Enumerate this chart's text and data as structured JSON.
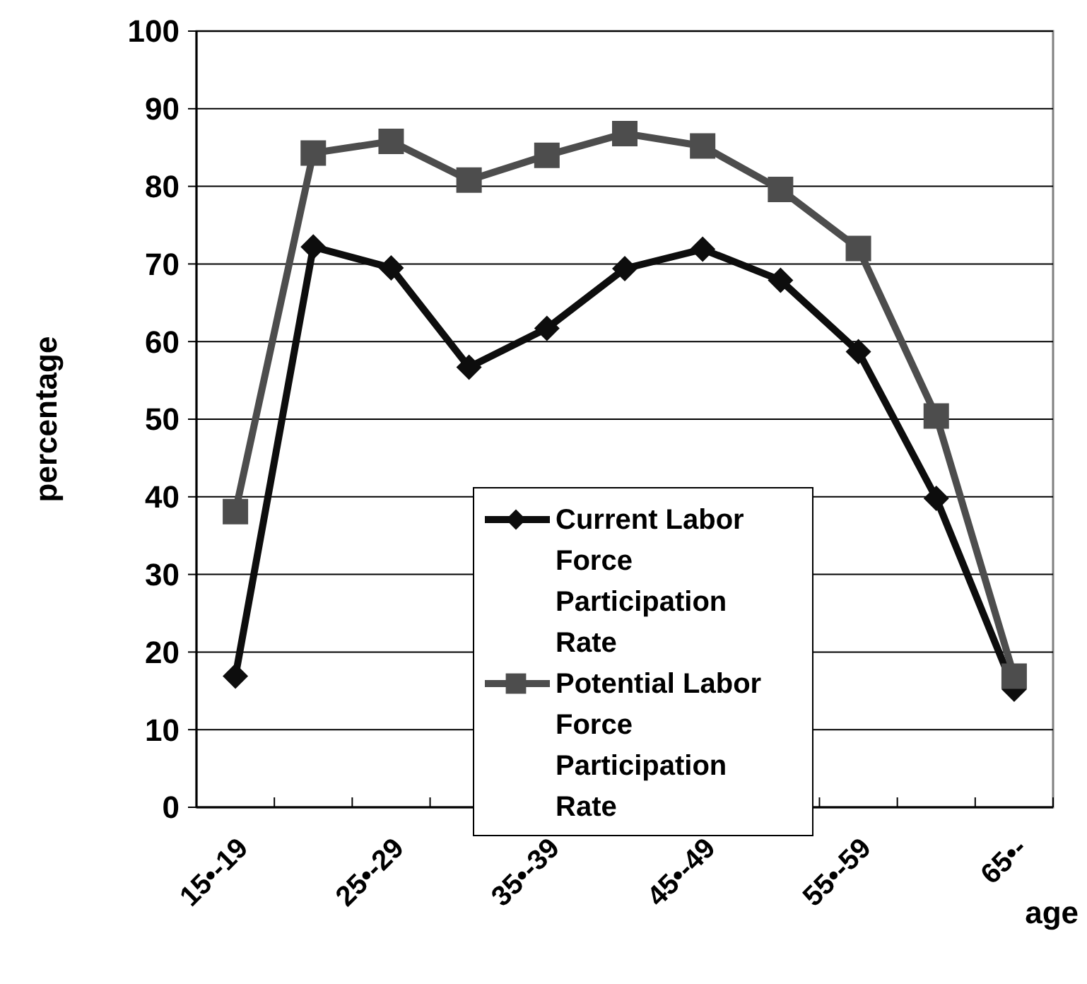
{
  "chart_data": {
    "type": "line",
    "xlabel": "age",
    "ylabel": "percentage",
    "categories": [
      "15•-19",
      null,
      "25•-29",
      null,
      "35•-39",
      null,
      "45•-49",
      null,
      "55•-59",
      null,
      "65•-"
    ],
    "series": [
      {
        "name": "Current Labor Force Participation Rate",
        "color": "#0d0d0d",
        "marker": "diamond",
        "values": [
          16.9,
          72.2,
          69.5,
          56.7,
          61.7,
          69.4,
          71.9,
          67.9,
          58.7,
          39.8,
          15.2
        ]
      },
      {
        "name": "Potential Labor Force Participation Rate",
        "color": "#4d4d4d",
        "marker": "square",
        "values": [
          38.1,
          84.3,
          85.8,
          80.8,
          84.0,
          86.8,
          85.2,
          79.6,
          72.0,
          50.4,
          16.9
        ]
      }
    ],
    "ylim": [
      0,
      100
    ],
    "yticks": [
      0,
      10,
      20,
      30,
      40,
      50,
      60,
      70,
      80,
      90,
      100
    ],
    "grid": "y",
    "legend": "bottom"
  }
}
